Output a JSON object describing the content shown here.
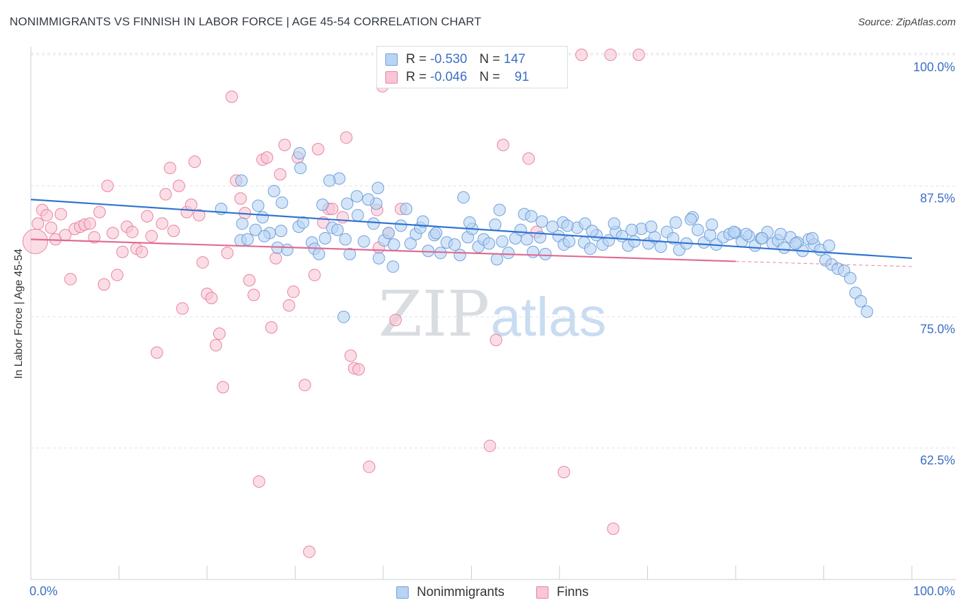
{
  "header": {
    "title": "NONIMMIGRANTS VS FINNISH IN LABOR FORCE | AGE 45-54 CORRELATION CHART",
    "source": "Source: ZipAtlas.com"
  },
  "watermark": {
    "zip": "ZIP",
    "atlas": "atlas"
  },
  "legend": {
    "rows": [
      {
        "r_label": "R =",
        "r_value": "-0.530",
        "n_label": "N =",
        "n_value": "147"
      },
      {
        "r_label": "R =",
        "r_value": "-0.046",
        "n_label": "N =",
        "n_value": "91"
      }
    ]
  },
  "bottom_legend": {
    "items": [
      "Nonimmigrants",
      "Finns"
    ]
  },
  "colors": {
    "blue_fill": "#b8d3f4",
    "blue_stroke": "#6f9fdc",
    "blue_line": "#2f73d0",
    "pink_fill": "#f8c6d4",
    "pink_stroke": "#e8839f",
    "pink_line": "#e06a92",
    "axis_text": "#3b6fc4",
    "grid": "#dde1e6"
  },
  "chart_data": {
    "type": "scatter",
    "title": "NONIMMIGRANTS VS FINNISH IN LABOR FORCE | AGE 45-54 CORRELATION CHART",
    "xlabel": "",
    "ylabel": "In Labor Force | Age 45-54",
    "xlim": [
      0,
      100
    ],
    "ylim": [
      50,
      101.5
    ],
    "x_tick_labels": [
      "0.0%",
      "100.0%"
    ],
    "y_ticks": [
      62.5,
      75.0,
      87.5,
      100.0
    ],
    "y_tick_labels": [
      "62.5%",
      "75.0%",
      "87.5%",
      "100.0%"
    ],
    "grid": true,
    "legend_position": "top-center",
    "series": [
      {
        "name": "Nonimmigrants",
        "r": -0.53,
        "n": 147,
        "trend": {
          "x": [
            0,
            100
          ],
          "y": [
            86.2,
            80.6
          ]
        },
        "points": [
          [
            21.6,
            85.3
          ],
          [
            23.8,
            82.3
          ],
          [
            24.0,
            83.9
          ],
          [
            24.6,
            82.4
          ],
          [
            25.5,
            83.3
          ],
          [
            25.8,
            85.6
          ],
          [
            26.3,
            84.5
          ],
          [
            27.1,
            83.0
          ],
          [
            28.0,
            81.6
          ],
          [
            28.4,
            83.2
          ],
          [
            29.1,
            81.4
          ],
          [
            30.4,
            83.6
          ],
          [
            30.9,
            84.0
          ],
          [
            31.9,
            82.1
          ],
          [
            32.2,
            81.5
          ],
          [
            33.4,
            82.5
          ],
          [
            34.2,
            83.5
          ],
          [
            34.8,
            83.3
          ],
          [
            35.7,
            82.4
          ],
          [
            36.2,
            81.0
          ],
          [
            37.1,
            84.7
          ],
          [
            37.8,
            82.2
          ],
          [
            38.9,
            83.9
          ],
          [
            39.5,
            80.6
          ],
          [
            40.1,
            82.3
          ],
          [
            40.6,
            83.0
          ],
          [
            41.2,
            81.9
          ],
          [
            42.0,
            83.7
          ],
          [
            43.1,
            82.0
          ],
          [
            43.7,
            82.9
          ],
          [
            44.2,
            83.5
          ],
          [
            45.1,
            81.3
          ],
          [
            45.8,
            82.8
          ],
          [
            46.5,
            81.1
          ],
          [
            47.2,
            82.1
          ],
          [
            48.1,
            81.9
          ],
          [
            48.7,
            80.9
          ],
          [
            49.6,
            82.6
          ],
          [
            50.1,
            83.4
          ],
          [
            50.8,
            81.7
          ],
          [
            51.4,
            82.4
          ],
          [
            52.0,
            82.0
          ],
          [
            52.9,
            80.5
          ],
          [
            53.5,
            82.2
          ],
          [
            54.2,
            81.1
          ],
          [
            55.0,
            82.5
          ],
          [
            55.6,
            83.3
          ],
          [
            56.3,
            82.4
          ],
          [
            57.0,
            81.2
          ],
          [
            57.8,
            82.6
          ],
          [
            58.4,
            81.0
          ],
          [
            59.2,
            83.6
          ],
          [
            59.9,
            82.7
          ],
          [
            60.5,
            81.9
          ],
          [
            61.1,
            82.2
          ],
          [
            62.0,
            83.5
          ],
          [
            62.8,
            82.1
          ],
          [
            63.5,
            81.5
          ],
          [
            64.2,
            82.8
          ],
          [
            64.9,
            81.9
          ],
          [
            65.6,
            82.3
          ],
          [
            66.4,
            83.1
          ],
          [
            67.1,
            82.7
          ],
          [
            67.8,
            81.8
          ],
          [
            68.5,
            82.2
          ],
          [
            69.3,
            83.4
          ],
          [
            70.1,
            82.0
          ],
          [
            70.8,
            82.6
          ],
          [
            71.5,
            81.7
          ],
          [
            72.2,
            83.1
          ],
          [
            72.9,
            82.5
          ],
          [
            73.6,
            81.4
          ],
          [
            74.4,
            82.0
          ],
          [
            75.1,
            84.5
          ],
          [
            75.7,
            83.3
          ],
          [
            76.4,
            82.1
          ],
          [
            77.1,
            82.8
          ],
          [
            77.8,
            81.9
          ],
          [
            78.6,
            82.6
          ],
          [
            79.3,
            82.9
          ],
          [
            80.0,
            83.0
          ],
          [
            80.7,
            82.2
          ],
          [
            81.5,
            82.7
          ],
          [
            82.2,
            81.8
          ],
          [
            82.9,
            82.5
          ],
          [
            83.6,
            83.1
          ],
          [
            84.2,
            82.0
          ],
          [
            84.8,
            82.3
          ],
          [
            85.5,
            81.6
          ],
          [
            86.2,
            82.6
          ],
          [
            87.0,
            82.1
          ],
          [
            87.6,
            81.3
          ],
          [
            88.3,
            82.4
          ],
          [
            88.9,
            81.9
          ],
          [
            89.6,
            81.4
          ],
          [
            90.2,
            80.4
          ],
          [
            90.9,
            80.0
          ],
          [
            91.6,
            79.6
          ],
          [
            92.3,
            79.4
          ],
          [
            93.0,
            78.7
          ],
          [
            93.6,
            77.3
          ],
          [
            94.2,
            76.5
          ],
          [
            94.9,
            75.5
          ],
          [
            30.5,
            90.6
          ],
          [
            30.6,
            89.2
          ],
          [
            35.0,
            88.2
          ],
          [
            39.4,
            87.3
          ],
          [
            33.1,
            85.7
          ],
          [
            35.9,
            85.8
          ],
          [
            39.2,
            85.8
          ],
          [
            49.1,
            86.4
          ],
          [
            53.2,
            85.2
          ],
          [
            56.0,
            84.8
          ],
          [
            60.4,
            84.0
          ],
          [
            62.9,
            83.9
          ],
          [
            35.5,
            75.0
          ],
          [
            41.1,
            79.8
          ],
          [
            28.5,
            85.9
          ],
          [
            32.7,
            81.0
          ],
          [
            26.5,
            82.7
          ],
          [
            23.9,
            88.0
          ],
          [
            27.6,
            87.0
          ],
          [
            33.9,
            88.0
          ],
          [
            37.0,
            86.5
          ],
          [
            38.3,
            86.2
          ],
          [
            42.6,
            85.3
          ],
          [
            44.5,
            84.1
          ],
          [
            46.0,
            83.0
          ],
          [
            49.8,
            84.0
          ],
          [
            52.7,
            83.8
          ],
          [
            56.8,
            84.6
          ],
          [
            58.0,
            84.1
          ],
          [
            60.9,
            83.7
          ],
          [
            63.7,
            83.2
          ],
          [
            66.2,
            83.9
          ],
          [
            68.2,
            83.3
          ],
          [
            70.4,
            83.6
          ],
          [
            73.2,
            84.0
          ],
          [
            74.9,
            84.3
          ],
          [
            77.3,
            83.8
          ],
          [
            79.8,
            83.1
          ],
          [
            81.2,
            82.9
          ],
          [
            83.0,
            82.5
          ],
          [
            85.1,
            82.9
          ],
          [
            86.8,
            82.0
          ],
          [
            88.7,
            82.5
          ],
          [
            90.6,
            81.8
          ]
        ]
      },
      {
        "name": "Finns",
        "r": -0.046,
        "n": 91,
        "trend": {
          "x": [
            0,
            80
          ],
          "y": [
            82.4,
            80.3
          ]
        },
        "trend_dashed": {
          "x": [
            80,
            100
          ],
          "y": [
            80.3,
            79.8
          ]
        },
        "points": [
          [
            0.5,
            82.2
          ],
          [
            0.8,
            83.9
          ],
          [
            1.3,
            85.2
          ],
          [
            1.8,
            84.7
          ],
          [
            2.3,
            83.5
          ],
          [
            2.8,
            82.4
          ],
          [
            3.4,
            84.8
          ],
          [
            3.9,
            82.8
          ],
          [
            4.5,
            78.6
          ],
          [
            5.0,
            83.4
          ],
          [
            5.6,
            83.6
          ],
          [
            6.1,
            83.8
          ],
          [
            6.7,
            83.9
          ],
          [
            7.2,
            82.6
          ],
          [
            7.8,
            85.0
          ],
          [
            8.3,
            78.1
          ],
          [
            8.7,
            87.5
          ],
          [
            9.3,
            83.0
          ],
          [
            9.8,
            79.0
          ],
          [
            10.4,
            81.2
          ],
          [
            10.9,
            83.6
          ],
          [
            11.5,
            83.1
          ],
          [
            12.0,
            81.5
          ],
          [
            12.6,
            81.2
          ],
          [
            13.2,
            84.6
          ],
          [
            13.7,
            82.7
          ],
          [
            14.3,
            71.6
          ],
          [
            14.9,
            83.9
          ],
          [
            15.3,
            86.7
          ],
          [
            15.8,
            89.2
          ],
          [
            16.2,
            83.2
          ],
          [
            16.8,
            87.5
          ],
          [
            17.2,
            75.8
          ],
          [
            17.7,
            85.0
          ],
          [
            18.2,
            85.7
          ],
          [
            18.6,
            89.8
          ],
          [
            19.1,
            84.7
          ],
          [
            19.5,
            80.2
          ],
          [
            20.0,
            77.2
          ],
          [
            20.5,
            76.8
          ],
          [
            21.0,
            72.3
          ],
          [
            21.4,
            73.4
          ],
          [
            21.8,
            68.3
          ],
          [
            22.3,
            81.1
          ],
          [
            22.8,
            96.0
          ],
          [
            23.3,
            88.0
          ],
          [
            23.8,
            86.3
          ],
          [
            24.3,
            84.9
          ],
          [
            24.8,
            78.5
          ],
          [
            25.3,
            77.1
          ],
          [
            25.9,
            59.3
          ],
          [
            26.3,
            90.0
          ],
          [
            26.8,
            90.2
          ],
          [
            27.3,
            74.0
          ],
          [
            27.8,
            80.6
          ],
          [
            28.3,
            88.6
          ],
          [
            28.8,
            91.4
          ],
          [
            29.3,
            76.1
          ],
          [
            29.8,
            77.4
          ],
          [
            30.3,
            90.2
          ],
          [
            31.1,
            68.5
          ],
          [
            31.6,
            52.6
          ],
          [
            32.6,
            91.0
          ],
          [
            32.2,
            79.0
          ],
          [
            33.2,
            84.0
          ],
          [
            33.8,
            85.3
          ],
          [
            34.2,
            85.3
          ],
          [
            35.4,
            84.5
          ],
          [
            35.8,
            92.1
          ],
          [
            36.3,
            71.3
          ],
          [
            36.7,
            70.1
          ],
          [
            37.2,
            70.0
          ],
          [
            38.4,
            60.7
          ],
          [
            39.5,
            81.6
          ],
          [
            40.6,
            83.0
          ],
          [
            41.4,
            74.7
          ],
          [
            42.0,
            85.3
          ],
          [
            44.5,
            100.0
          ],
          [
            52.1,
            62.7
          ],
          [
            52.8,
            72.8
          ],
          [
            53.6,
            91.4
          ],
          [
            56.5,
            90.1
          ],
          [
            57.4,
            83.1
          ],
          [
            60.5,
            60.2
          ],
          [
            62.5,
            100.0
          ],
          [
            65.8,
            100.0
          ],
          [
            66.1,
            54.8
          ],
          [
            69.0,
            100.0
          ],
          [
            40.5,
            100.0
          ],
          [
            39.3,
            85.2
          ],
          [
            39.9,
            97.0
          ]
        ]
      }
    ]
  }
}
